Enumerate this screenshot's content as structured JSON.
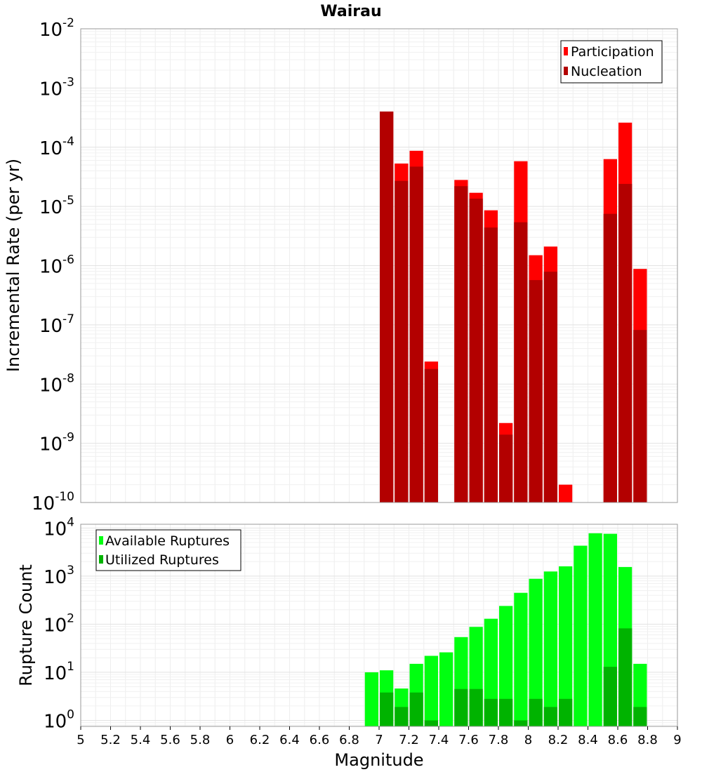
{
  "chart_data": [
    {
      "type": "bar",
      "title": "Wairau",
      "xlabel": "",
      "ylabel": "Incremental Rate (per yr)",
      "y_scale": "log",
      "ylim": [
        1e-10,
        0.01
      ],
      "y_ticks": [
        {
          "base": "10",
          "exp": "-2"
        },
        {
          "base": "10",
          "exp": "-3"
        },
        {
          "base": "10",
          "exp": "-4"
        },
        {
          "base": "10",
          "exp": "-5"
        },
        {
          "base": "10",
          "exp": "-6"
        },
        {
          "base": "10",
          "exp": "-7"
        },
        {
          "base": "10",
          "exp": "-8"
        },
        {
          "base": "10",
          "exp": "-9"
        },
        {
          "base": "10",
          "exp": "-10"
        }
      ],
      "xlim": [
        5,
        9
      ],
      "grid": true,
      "legend_position": "top-right",
      "bar_width": 0.1,
      "series": [
        {
          "name": "Participation",
          "color": "#ff0000",
          "points": [
            [
              7.05,
              0.0004
            ],
            [
              7.15,
              5.3e-05
            ],
            [
              7.25,
              8.7e-05
            ],
            [
              7.35,
              2.4e-08
            ],
            [
              7.55,
              2.8e-05
            ],
            [
              7.65,
              1.7e-05
            ],
            [
              7.75,
              8.6e-06
            ],
            [
              7.85,
              2.2e-09
            ],
            [
              7.95,
              5.8e-05
            ],
            [
              8.05,
              1.5e-06
            ],
            [
              8.15,
              2.1e-06
            ],
            [
              8.25,
              2e-10
            ],
            [
              8.55,
              6.3e-05
            ],
            [
              8.65,
              0.00026
            ],
            [
              8.75,
              8.8e-07
            ]
          ]
        },
        {
          "name": "Nucleation",
          "color": "#b30000",
          "points": [
            [
              7.05,
              0.0004
            ],
            [
              7.15,
              2.7e-05
            ],
            [
              7.25,
              4.7e-05
            ],
            [
              7.35,
              1.8e-08
            ],
            [
              7.55,
              2.2e-05
            ],
            [
              7.65,
              1.35e-05
            ],
            [
              7.75,
              4.4e-06
            ],
            [
              7.85,
              1.4e-09
            ],
            [
              7.95,
              5.4e-06
            ],
            [
              8.05,
              5.7e-07
            ],
            [
              8.15,
              7.9e-07
            ],
            [
              8.55,
              7.5e-06
            ],
            [
              8.65,
              2.4e-05
            ],
            [
              8.75,
              8.2e-08
            ]
          ]
        }
      ]
    },
    {
      "type": "bar",
      "title": "",
      "xlabel": "Magnitude",
      "ylabel": "Rupture Count",
      "y_scale": "log",
      "ylim": [
        0.75,
        12000
      ],
      "y_ticks": [
        {
          "base": "10",
          "exp": "4"
        },
        {
          "base": "10",
          "exp": "3"
        },
        {
          "base": "10",
          "exp": "2"
        },
        {
          "base": "10",
          "exp": "1"
        },
        {
          "base": "10",
          "exp": "0"
        }
      ],
      "xlim": [
        5,
        9
      ],
      "x_ticks": [
        "5",
        "5.2",
        "5.4",
        "5.6",
        "5.8",
        "6",
        "6.2",
        "6.4",
        "6.6",
        "6.8",
        "7",
        "7.2",
        "7.4",
        "7.6",
        "7.8",
        "8",
        "8.2",
        "8.4",
        "8.6",
        "8.8",
        "9"
      ],
      "grid": true,
      "legend_position": "top-left",
      "bar_width": 0.1,
      "series": [
        {
          "name": "Available Ruptures",
          "color": "#00ff10",
          "points": [
            [
              6.95,
              10
            ],
            [
              7.05,
              11
            ],
            [
              7.15,
              4.6
            ],
            [
              7.25,
              15
            ],
            [
              7.35,
              22
            ],
            [
              7.45,
              26
            ],
            [
              7.55,
              54
            ],
            [
              7.65,
              88
            ],
            [
              7.75,
              130
            ],
            [
              7.85,
              240
            ],
            [
              7.95,
              450
            ],
            [
              8.05,
              880
            ],
            [
              8.15,
              1250
            ],
            [
              8.25,
              1600
            ],
            [
              8.35,
              4300
            ],
            [
              8.45,
              7800
            ],
            [
              8.55,
              7600
            ],
            [
              8.65,
              1550
            ],
            [
              8.75,
              15
            ]
          ]
        },
        {
          "name": "Utilized Ruptures",
          "color": "#00b300",
          "points": [
            [
              7.05,
              3.8
            ],
            [
              7.15,
              1.9
            ],
            [
              7.25,
              3.8
            ],
            [
              7.35,
              1
            ],
            [
              7.55,
              4.5
            ],
            [
              7.65,
              4.5
            ],
            [
              7.75,
              2.8
            ],
            [
              7.85,
              2.8
            ],
            [
              7.95,
              1
            ],
            [
              8.05,
              2.8
            ],
            [
              8.15,
              1.9
            ],
            [
              8.25,
              2.8
            ],
            [
              8.55,
              13
            ],
            [
              8.65,
              82
            ],
            [
              8.75,
              1.9
            ]
          ]
        }
      ]
    }
  ]
}
